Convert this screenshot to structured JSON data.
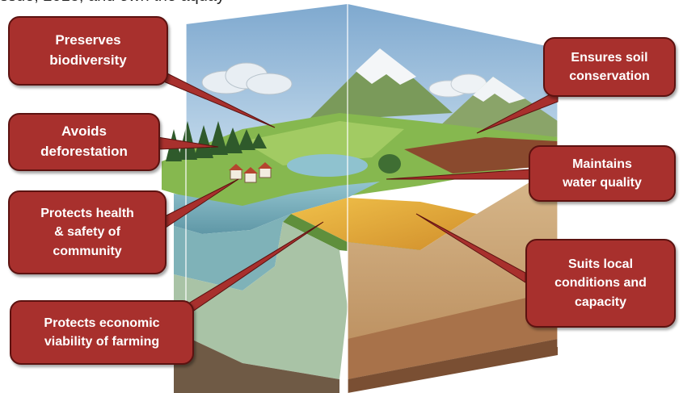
{
  "header": {
    "cut_off_text": "ssue, 2018; and own the aquay"
  },
  "callouts": {
    "preserves_biodiversity": "Preserves\nbiodiversity",
    "avoids_deforestation": "Avoids\ndeforestation",
    "protects_health": "Protects health\n& safety of\ncommunity",
    "protects_economic": "Protects economic\nviability of farming",
    "ensures_soil": "Ensures soil\nconservation",
    "maintains_water": "Maintains\nwater quality",
    "suits_local": "Suits local\nconditions and\ncapacity"
  },
  "colors": {
    "callout_fill": "#a8302d",
    "callout_border": "#5c1210",
    "sky": "#8fb8d8",
    "grass": "#7fb04a",
    "water": "#7fb6c4",
    "field": "#e0a83a"
  }
}
